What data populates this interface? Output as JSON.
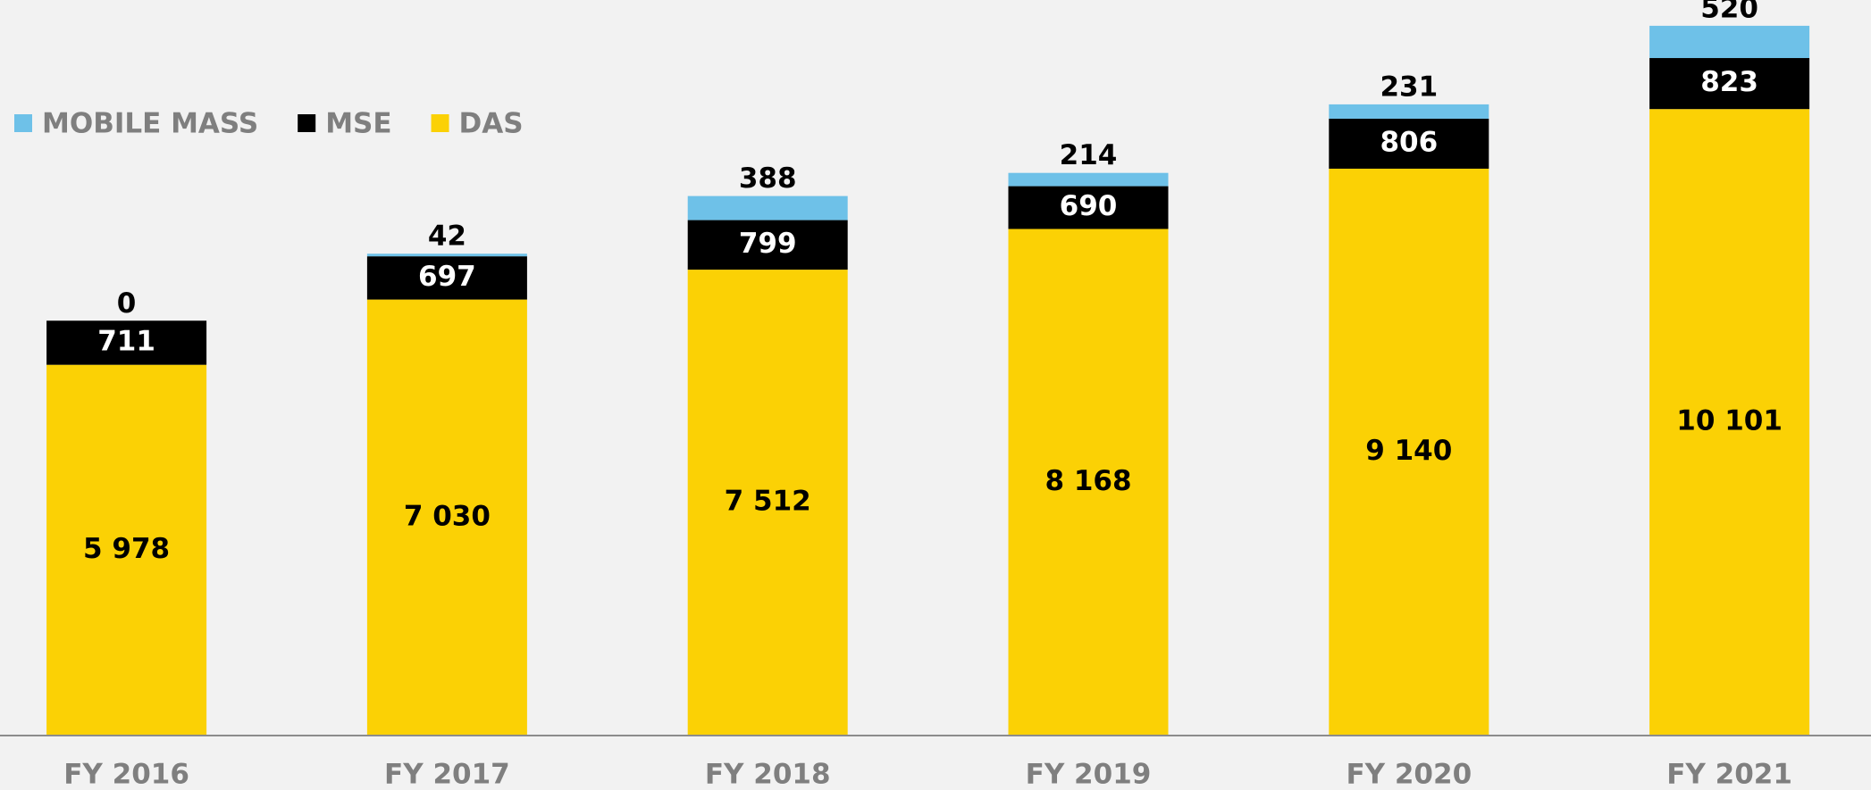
{
  "chart_data": {
    "type": "stacked_bar",
    "categories": [
      "FY 2016",
      "FY 2017",
      "FY 2018",
      "FY 2019",
      "FY 2020",
      "FY 2021"
    ],
    "series": [
      {
        "name": "DAS",
        "color": "#fbd105",
        "values": [
          5978,
          7030,
          7512,
          8168,
          9140,
          10101
        ],
        "value_labels": [
          "5 978",
          "7 030",
          "7 512",
          "8 168",
          "9 140",
          "10 101"
        ]
      },
      {
        "name": "MSE",
        "color": "#000000",
        "values": [
          711,
          697,
          799,
          690,
          806,
          823
        ]
      },
      {
        "name": "MOBILE MASS",
        "color": "#6ec1e8",
        "values": [
          0,
          42,
          388,
          214,
          231,
          520
        ]
      }
    ],
    "ylim": [
      0,
      11500
    ],
    "legend": "top-left"
  }
}
